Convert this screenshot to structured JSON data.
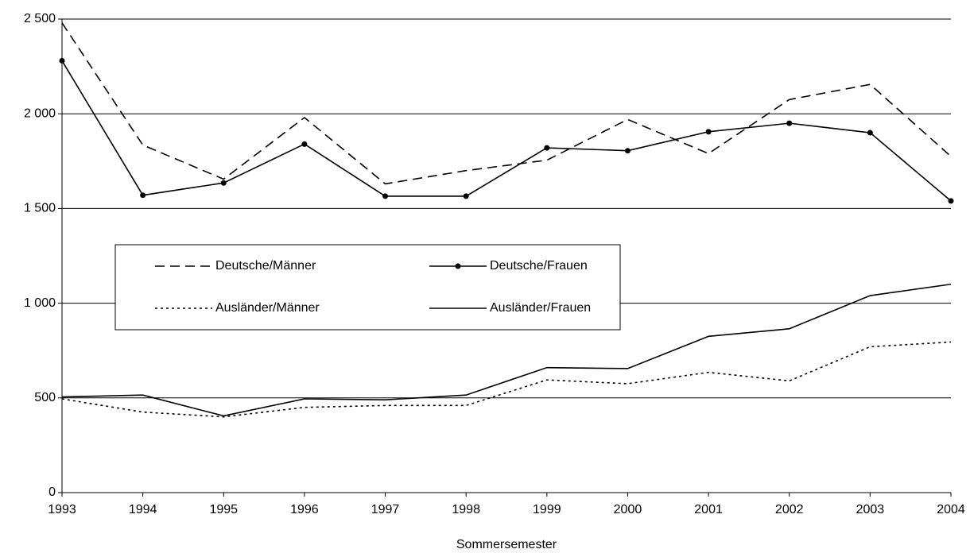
{
  "chart_data": {
    "type": "line",
    "xlabel": "Sommersemester",
    "categories": [
      "1993",
      "1994",
      "1995",
      "1996",
      "1997",
      "1998",
      "1999",
      "2000",
      "2001",
      "2002",
      "2003",
      "2004"
    ],
    "series": [
      {
        "name": "Deutsche/Männer",
        "color": "#000000",
        "dash": "dashed",
        "values": [
          2480,
          1835,
          1655,
          1980,
          1630,
          1700,
          1755,
          1970,
          1790,
          2075,
          2155,
          1775
        ]
      },
      {
        "name": "Deutsche/Frauen",
        "color": "#000000",
        "dash": "solid",
        "marker": "circle",
        "values": [
          2280,
          1570,
          1635,
          1840,
          1565,
          1565,
          1820,
          1805,
          1905,
          1950,
          1900,
          1540
        ]
      },
      {
        "name": "Ausländer/Männer",
        "color": "#000000",
        "dash": "dotted",
        "values": [
          495,
          425,
          400,
          450,
          460,
          460,
          595,
          575,
          635,
          590,
          770,
          795
        ]
      },
      {
        "name": "Ausländer/Frauen",
        "color": "#000000",
        "dash": "solid",
        "values": [
          505,
          515,
          405,
          495,
          490,
          515,
          660,
          655,
          825,
          865,
          1040,
          1100
        ]
      }
    ],
    "ylim": [
      0,
      2500
    ],
    "yticks": [
      0,
      500,
      {
        "value": 1000,
        "label": "1 000"
      },
      {
        "value": 1500,
        "label": "1 500"
      },
      {
        "value": 2000,
        "label": "2 000"
      },
      {
        "value": 2500,
        "label": "2 500"
      }
    ],
    "grid": true,
    "legend": "inside"
  }
}
